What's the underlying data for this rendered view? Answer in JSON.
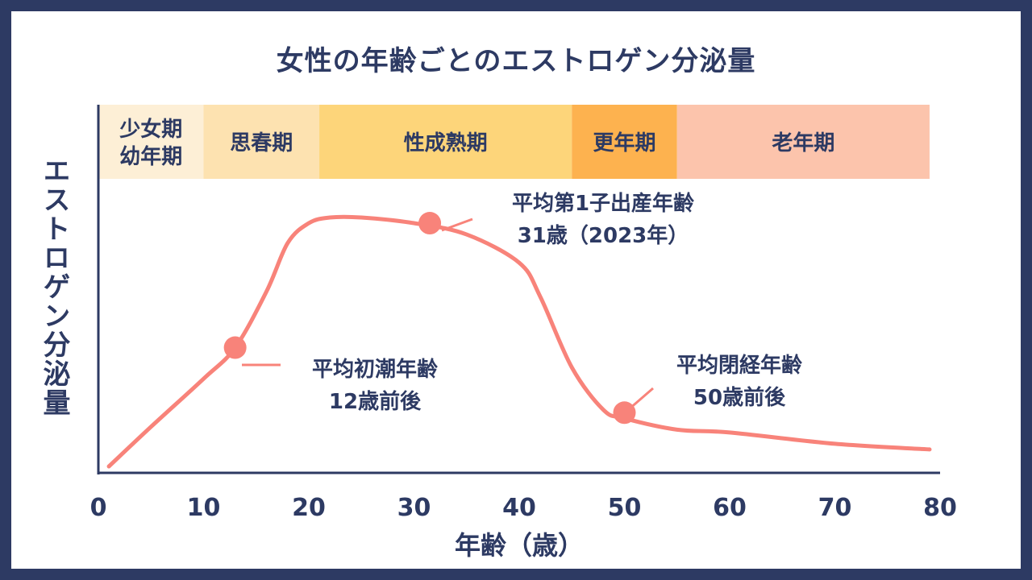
{
  "chart_data": {
    "type": "line",
    "title": "女性の年齢ごとのエストロゲン分泌量",
    "xlabel": "年齢（歳）",
    "ylabel": "エストロゲン分泌量",
    "xlim": [
      0,
      80
    ],
    "x_ticks": [
      "0",
      "10",
      "20",
      "30",
      "40",
      "50",
      "60",
      "70",
      "80"
    ],
    "stages": [
      {
        "label_lines": [
          "少女期",
          "幼年期"
        ],
        "start": 0,
        "end": 10,
        "color": "#fdefd6"
      },
      {
        "label_lines": [
          "思春期"
        ],
        "start": 10,
        "end": 21,
        "color": "#fde2b0"
      },
      {
        "label_lines": [
          "性成熟期"
        ],
        "start": 21,
        "end": 45,
        "color": "#fdd57a"
      },
      {
        "label_lines": [
          "更年期"
        ],
        "start": 45,
        "end": 55,
        "color": "#fdb24f"
      },
      {
        "label_lines": [
          "老年期"
        ],
        "start": 55,
        "end": 79,
        "color": "#fcc4ac"
      }
    ],
    "series": [
      {
        "color": "#f8837a",
        "x": [
          1,
          5,
          10,
          13,
          16,
          18,
          20,
          22,
          25,
          30,
          35,
          40,
          42,
          45,
          48,
          50,
          55,
          60,
          70,
          79
        ],
        "y": [
          0,
          0.14,
          0.31,
          0.42,
          0.62,
          0.79,
          0.86,
          0.88,
          0.88,
          0.86,
          0.82,
          0.72,
          0.6,
          0.35,
          0.2,
          0.17,
          0.13,
          0.12,
          0.08,
          0.06
        ]
      }
    ],
    "annotations": [
      {
        "x": 13,
        "y": 0.42,
        "lines": [
          "平均初潮年齢",
          "12歳前後"
        ]
      },
      {
        "x": 31.5,
        "y": 0.86,
        "lines": [
          "平均第1子出産年齢",
          "31歳（2023年）"
        ]
      },
      {
        "x": 50,
        "y": 0.19,
        "lines": [
          "平均閉経年齢",
          "50歳前後"
        ]
      }
    ],
    "grid": false,
    "legend": "none"
  }
}
